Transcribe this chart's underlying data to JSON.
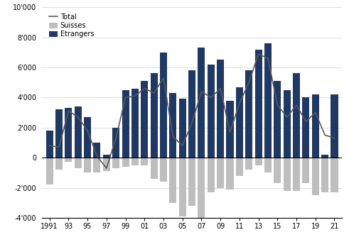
{
  "years": [
    1991,
    1992,
    1993,
    1994,
    1995,
    1996,
    1997,
    1998,
    1999,
    2000,
    2001,
    2002,
    2003,
    2004,
    2005,
    2006,
    2007,
    2008,
    2009,
    2010,
    2011,
    2012,
    2013,
    2014,
    2015,
    2016,
    2017,
    2018,
    2019,
    2020,
    2021
  ],
  "etrangers": [
    1800,
    3200,
    3300,
    3400,
    2700,
    1000,
    200,
    2000,
    4500,
    4600,
    5100,
    5600,
    7000,
    4300,
    3900,
    5800,
    7300,
    6200,
    6500,
    3800,
    4700,
    5800,
    7200,
    7600,
    5100,
    4500,
    5600,
    4000,
    4200,
    200,
    4200
  ],
  "suisses": [
    -1800,
    -800,
    -300,
    -700,
    -1000,
    -1000,
    -900,
    -700,
    -600,
    -500,
    -500,
    -1400,
    -1600,
    -3000,
    -3900,
    -3200,
    -4200,
    -2300,
    -2000,
    -2100,
    -1200,
    -800,
    -500,
    -1000,
    -1700,
    -2200,
    -2200,
    -1700,
    -2500,
    -2300,
    -2300
  ],
  "total": [
    800,
    700,
    3100,
    2700,
    1800,
    100,
    -700,
    1300,
    4000,
    4100,
    4600,
    4300,
    5300,
    1400,
    800,
    2300,
    4400,
    4000,
    4600,
    1700,
    3600,
    5000,
    6900,
    6600,
    3500,
    2700,
    3500,
    2400,
    3000,
    1500,
    1300
  ],
  "bar_color_etrangers": "#1f3864",
  "bar_color_suisses": "#bebebe",
  "line_color_total": "#595959",
  "ylim": [
    -4000,
    10000
  ],
  "yticks": [
    -4000,
    -2000,
    0,
    2000,
    4000,
    6000,
    8000,
    10000
  ],
  "ytick_labels": [
    "-4'000",
    "-2'000",
    "0",
    "2'000",
    "4'000",
    "6'000",
    "8'000",
    "10'000"
  ],
  "xtick_years": [
    1991,
    1993,
    1995,
    1997,
    1999,
    2001,
    2003,
    2005,
    2007,
    2009,
    2011,
    2013,
    2015,
    2017,
    2019,
    2021
  ],
  "xtick_labels": [
    "1991",
    "93",
    "95",
    "97",
    "99",
    "01",
    "03",
    "05",
    "07",
    "09",
    "11",
    "13",
    "15",
    "17",
    "19",
    "21"
  ],
  "legend_suisses": "Suisses",
  "legend_etrangers": "Etrangers",
  "legend_total": "Total",
  "bar_width": 0.75,
  "figsize": [
    4.91,
    3.41
  ],
  "dpi": 100
}
